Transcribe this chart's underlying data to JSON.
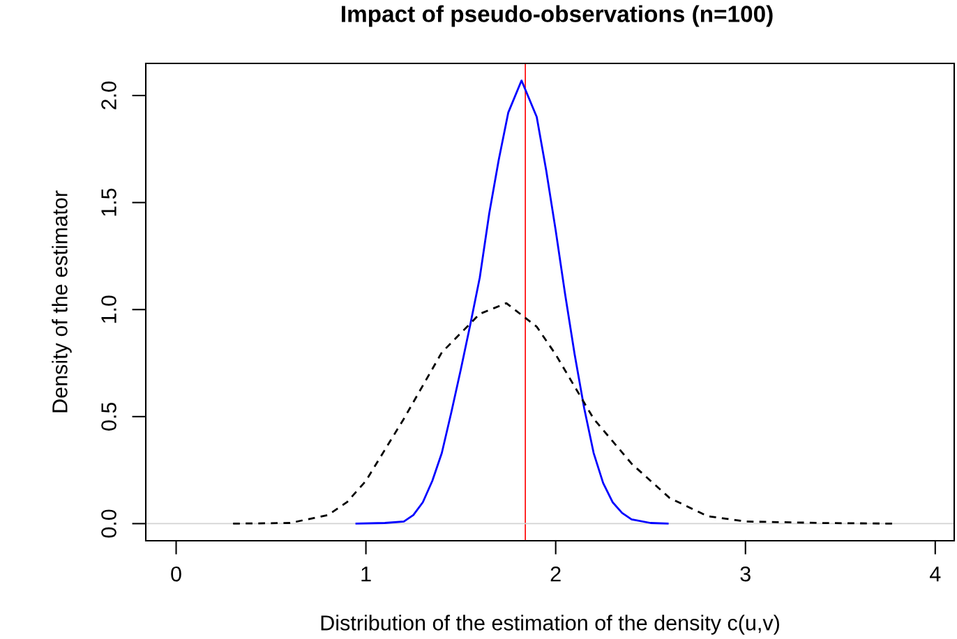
{
  "chart_data": {
    "type": "line",
    "title": "Impact of pseudo-observations (n=100)",
    "xlabel": "Distribution of the estimation of the density c(u,v)",
    "ylabel": "Density of the estimator",
    "series": [
      {
        "color": "#0000ff",
        "line_style": "solid",
        "x": [
          0.95,
          1.1,
          1.2,
          1.25,
          1.3,
          1.35,
          1.4,
          1.45,
          1.5,
          1.55,
          1.6,
          1.65,
          1.7,
          1.75,
          1.82,
          1.9,
          1.95,
          2.0,
          2.05,
          2.1,
          2.15,
          2.2,
          2.25,
          2.3,
          2.35,
          2.4,
          2.5,
          2.59
        ],
        "values": [
          0,
          0.003,
          0.01,
          0.04,
          0.1,
          0.2,
          0.33,
          0.52,
          0.72,
          0.93,
          1.15,
          1.45,
          1.7,
          1.92,
          2.07,
          1.9,
          1.65,
          1.37,
          1.07,
          0.79,
          0.54,
          0.33,
          0.19,
          0.1,
          0.05,
          0.02,
          0.003,
          0
        ]
      },
      {
        "color": "#000000",
        "line_style": "dashed",
        "x": [
          0.3,
          0.6,
          0.8,
          0.9,
          1.0,
          1.2,
          1.4,
          1.6,
          1.74,
          1.9,
          2.0,
          2.2,
          2.4,
          2.6,
          2.8,
          3.0,
          3.4,
          3.78
        ],
        "values": [
          0,
          0.003,
          0.04,
          0.1,
          0.2,
          0.49,
          0.8,
          0.98,
          1.03,
          0.92,
          0.79,
          0.49,
          0.28,
          0.12,
          0.035,
          0.01,
          0.003,
          0
        ]
      }
    ],
    "xlim": [
      -0.16,
      4.1
    ],
    "ylim": [
      -0.08,
      2.15
    ],
    "xticks": [
      0,
      1,
      2,
      3,
      4
    ],
    "yticks": [
      {
        "value": 0,
        "label": "0.0"
      },
      {
        "value": 0.5,
        "label": "0.5"
      },
      {
        "value": 1,
        "label": "1.0"
      },
      {
        "value": 1.5,
        "label": "1.5"
      },
      {
        "value": 2,
        "label": "2.0"
      }
    ],
    "ref_lines": [
      {
        "axis": "x",
        "value": 1.84,
        "color": "#ff0000"
      },
      {
        "axis": "y",
        "value": 0,
        "color": "#d3d3d3"
      }
    ],
    "grid": false,
    "legend": false
  }
}
